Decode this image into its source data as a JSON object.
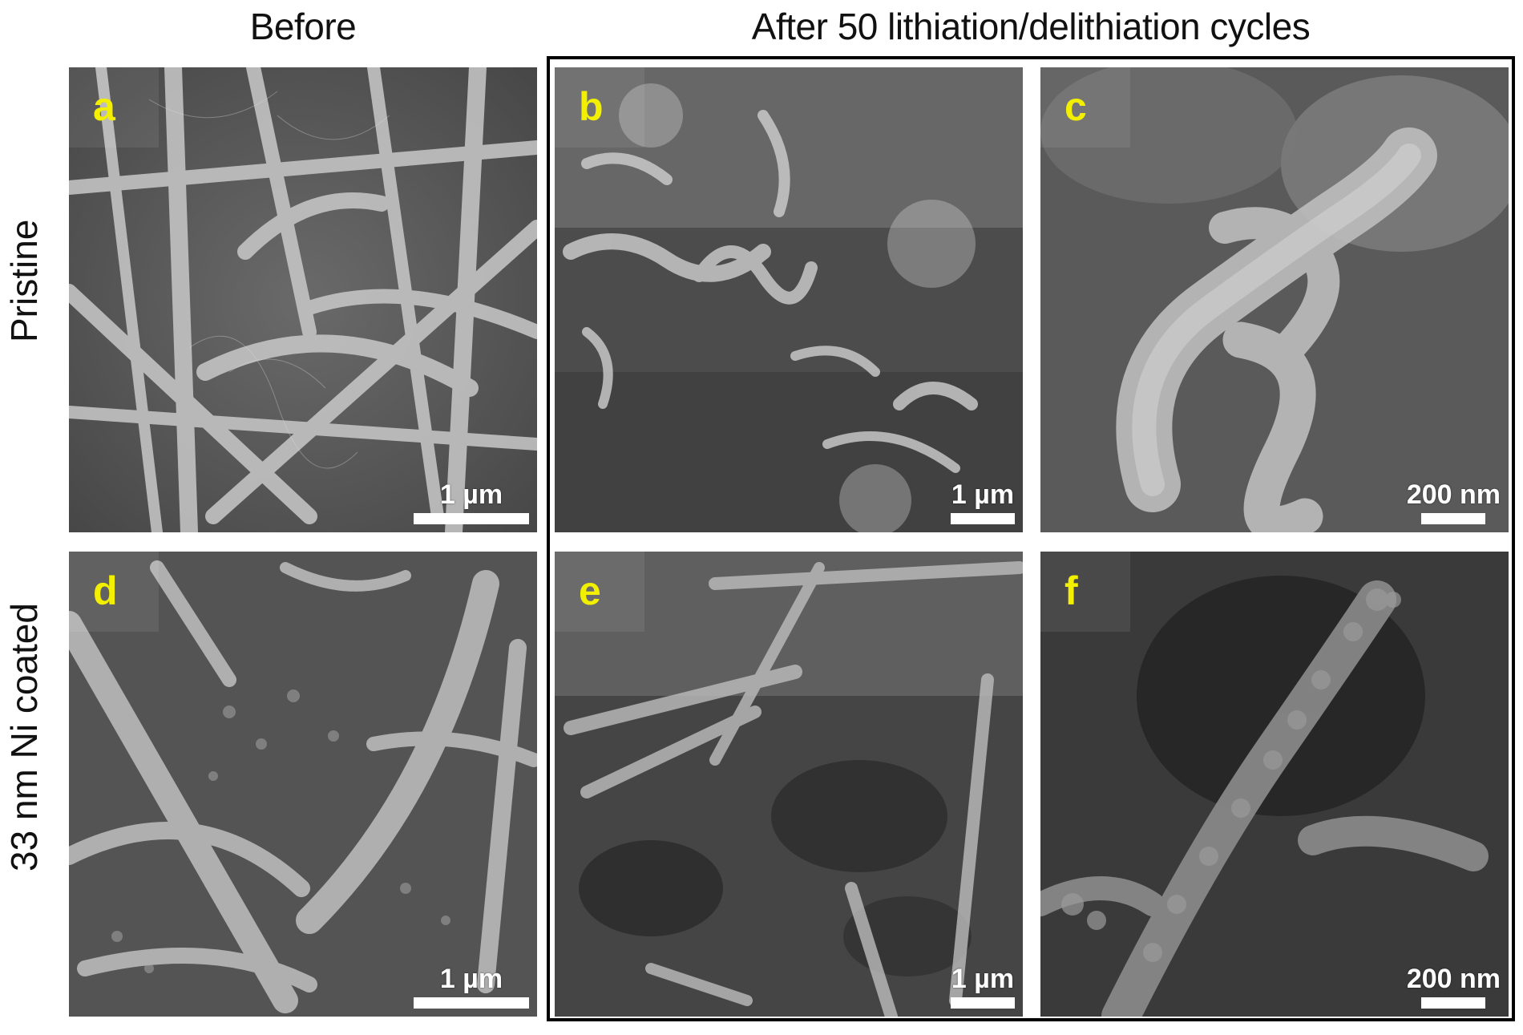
{
  "column_headers": {
    "before": "Before",
    "after": "After 50 lithiation/delithiation cycles"
  },
  "row_headers": {
    "top": "Pristine",
    "bottom": "33 nm Ni coated"
  },
  "panels": [
    {
      "label": "a",
      "scale": "1 µm"
    },
    {
      "label": "b",
      "scale": "1 µm"
    },
    {
      "label": "c",
      "scale": "200 nm"
    },
    {
      "label": "d",
      "scale": "1 µm"
    },
    {
      "label": "e",
      "scale": "1 µm"
    },
    {
      "label": "f",
      "scale": "200 nm"
    }
  ],
  "colors": {
    "panel_label": "#f2f000",
    "scale_bar": "#ffffff",
    "frame": "#000000"
  }
}
